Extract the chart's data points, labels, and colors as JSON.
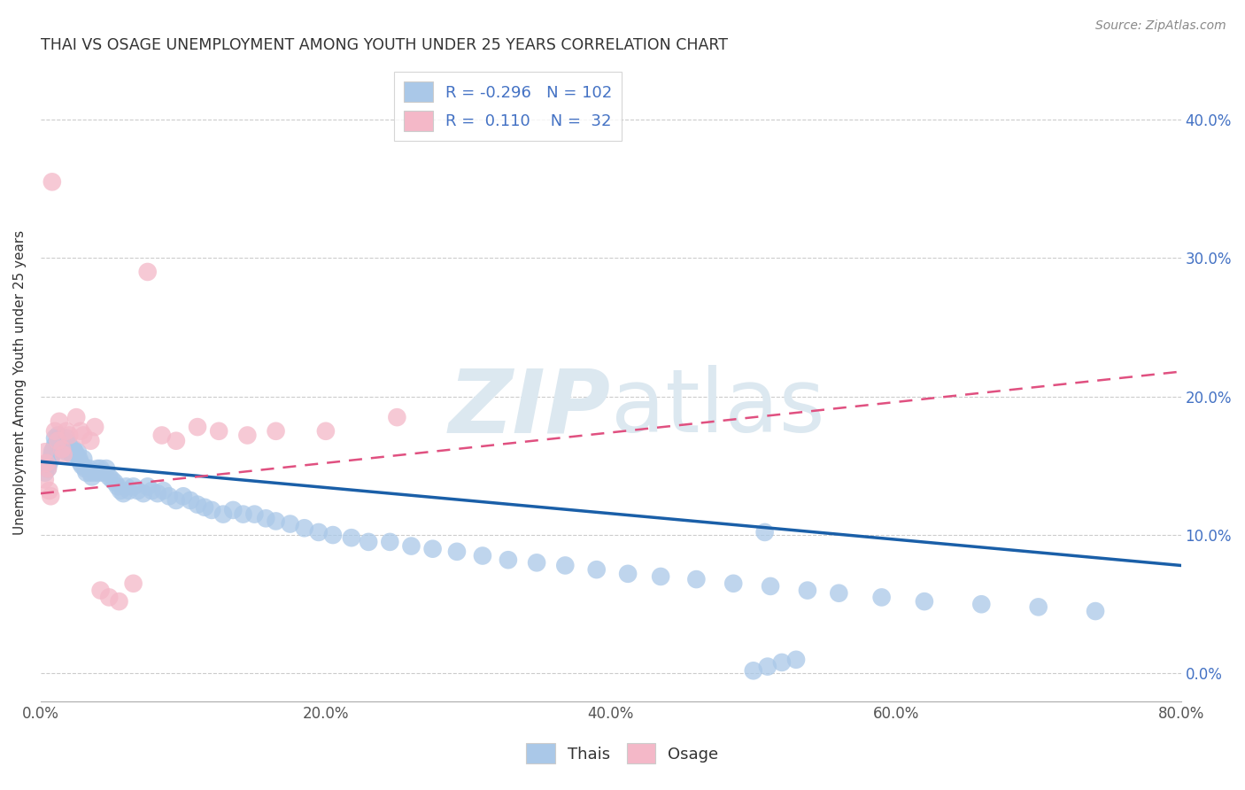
{
  "title": "THAI VS OSAGE UNEMPLOYMENT AMONG YOUTH UNDER 25 YEARS CORRELATION CHART",
  "source": "Source: ZipAtlas.com",
  "ylabel": "Unemployment Among Youth under 25 years",
  "xlim": [
    0.0,
    0.8
  ],
  "ylim": [
    -0.02,
    0.44
  ],
  "xticks": [
    0.0,
    0.1,
    0.2,
    0.3,
    0.4,
    0.5,
    0.6,
    0.7,
    0.8
  ],
  "xticklabels": [
    "0.0%",
    "",
    "20.0%",
    "",
    "40.0%",
    "",
    "60.0%",
    "",
    "80.0%"
  ],
  "yticks": [
    0.0,
    0.1,
    0.2,
    0.3,
    0.4
  ],
  "yticklabels": [
    "0.0%",
    "10.0%",
    "20.0%",
    "30.0%",
    "40.0%"
  ],
  "legend_r_thai": "-0.296",
  "legend_n_thai": "102",
  "legend_r_osage": "0.110",
  "legend_n_osage": "32",
  "thai_color": "#aac8e8",
  "osage_color": "#f4b8c8",
  "thai_line_color": "#1a5fa8",
  "osage_line_color": "#e05080",
  "watermark_color": "#dce8f0",
  "background_color": "#ffffff",
  "thai_line_start_y": 0.153,
  "thai_line_end_y": 0.078,
  "osage_line_start_y": 0.13,
  "osage_line_end_y": 0.218,
  "thai_x": [
    0.003,
    0.005,
    0.006,
    0.007,
    0.008,
    0.008,
    0.009,
    0.01,
    0.01,
    0.012,
    0.012,
    0.013,
    0.014,
    0.015,
    0.015,
    0.016,
    0.017,
    0.018,
    0.018,
    0.019,
    0.02,
    0.021,
    0.022,
    0.023,
    0.024,
    0.025,
    0.026,
    0.027,
    0.028,
    0.029,
    0.03,
    0.031,
    0.032,
    0.034,
    0.035,
    0.036,
    0.038,
    0.04,
    0.041,
    0.042,
    0.044,
    0.046,
    0.048,
    0.05,
    0.052,
    0.054,
    0.056,
    0.058,
    0.06,
    0.062,
    0.065,
    0.068,
    0.072,
    0.075,
    0.078,
    0.082,
    0.086,
    0.09,
    0.095,
    0.1,
    0.105,
    0.11,
    0.115,
    0.12,
    0.128,
    0.135,
    0.142,
    0.15,
    0.158,
    0.165,
    0.175,
    0.185,
    0.195,
    0.205,
    0.218,
    0.23,
    0.245,
    0.26,
    0.275,
    0.292,
    0.31,
    0.328,
    0.348,
    0.368,
    0.39,
    0.412,
    0.435,
    0.46,
    0.486,
    0.512,
    0.538,
    0.508,
    0.56,
    0.59,
    0.62,
    0.66,
    0.7,
    0.74,
    0.5,
    0.51,
    0.52,
    0.53
  ],
  "thai_y": [
    0.145,
    0.148,
    0.152,
    0.155,
    0.16,
    0.158,
    0.162,
    0.165,
    0.17,
    0.168,
    0.172,
    0.17,
    0.168,
    0.165,
    0.162,
    0.165,
    0.168,
    0.17,
    0.16,
    0.162,
    0.165,
    0.16,
    0.158,
    0.162,
    0.16,
    0.158,
    0.16,
    0.155,
    0.152,
    0.15,
    0.155,
    0.148,
    0.145,
    0.148,
    0.145,
    0.142,
    0.145,
    0.148,
    0.145,
    0.148,
    0.145,
    0.148,
    0.142,
    0.14,
    0.138,
    0.135,
    0.132,
    0.13,
    0.135,
    0.132,
    0.135,
    0.132,
    0.13,
    0.135,
    0.132,
    0.13,
    0.132,
    0.128,
    0.125,
    0.128,
    0.125,
    0.122,
    0.12,
    0.118,
    0.115,
    0.118,
    0.115,
    0.115,
    0.112,
    0.11,
    0.108,
    0.105,
    0.102,
    0.1,
    0.098,
    0.095,
    0.095,
    0.092,
    0.09,
    0.088,
    0.085,
    0.082,
    0.08,
    0.078,
    0.075,
    0.072,
    0.07,
    0.068,
    0.065,
    0.063,
    0.06,
    0.102,
    0.058,
    0.055,
    0.052,
    0.05,
    0.048,
    0.045,
    0.002,
    0.005,
    0.008,
    0.01
  ],
  "osage_x": [
    0.008,
    0.003,
    0.003,
    0.004,
    0.005,
    0.006,
    0.007,
    0.01,
    0.012,
    0.013,
    0.015,
    0.016,
    0.018,
    0.02,
    0.025,
    0.028,
    0.03,
    0.035,
    0.038,
    0.042,
    0.048,
    0.055,
    0.065,
    0.075,
    0.085,
    0.095,
    0.11,
    0.125,
    0.145,
    0.165,
    0.2,
    0.25
  ],
  "osage_y": [
    0.355,
    0.14,
    0.16,
    0.152,
    0.148,
    0.132,
    0.128,
    0.175,
    0.168,
    0.182,
    0.162,
    0.158,
    0.175,
    0.172,
    0.185,
    0.175,
    0.172,
    0.168,
    0.178,
    0.06,
    0.055,
    0.052,
    0.065,
    0.29,
    0.172,
    0.168,
    0.178,
    0.175,
    0.172,
    0.175,
    0.175,
    0.185
  ]
}
